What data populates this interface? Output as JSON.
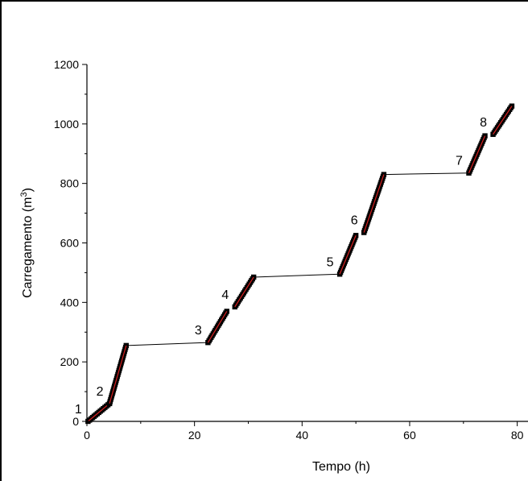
{
  "chart_data": {
    "type": "scatter",
    "title": "",
    "xlabel": "Tempo (h)",
    "ylabel_base": "Carregamento (m",
    "ylabel_sup": "3",
    "ylabel_close": ")",
    "xlim": [
      0,
      82
    ],
    "ylim": [
      0,
      1200
    ],
    "x_ticks": [
      0,
      20,
      40,
      60,
      80
    ],
    "x_tick_labels": [
      "0",
      "20",
      "40",
      "60",
      "80"
    ],
    "y_ticks": [
      0,
      200,
      400,
      600,
      800,
      1000,
      1200
    ],
    "y_tick_labels": [
      "0",
      "200",
      "400",
      "600",
      "800",
      "1000",
      "1200"
    ],
    "grid": false,
    "colors": {
      "points": "#000000",
      "fit": "#d62020",
      "connector": "#000000",
      "axis": "#000000"
    },
    "segments": [
      {
        "label": "1",
        "x": [
          0.2,
          4.2
        ],
        "y": [
          0,
          60
        ]
      },
      {
        "label": "2",
        "x": [
          4.2,
          7.3
        ],
        "y": [
          60,
          255
        ]
      },
      {
        "label": "3",
        "x": [
          22.5,
          26.0
        ],
        "y": [
          265,
          370
        ]
      },
      {
        "label": "4",
        "x": [
          27.5,
          31.0
        ],
        "y": [
          385,
          485
        ]
      },
      {
        "label": "5",
        "x": [
          47.0,
          50.0
        ],
        "y": [
          495,
          625
        ]
      },
      {
        "label": "6",
        "x": [
          51.5,
          55.2
        ],
        "y": [
          635,
          830
        ]
      },
      {
        "label": "7",
        "x": [
          71.0,
          74.0
        ],
        "y": [
          835,
          960
        ]
      },
      {
        "label": "8",
        "x": [
          75.5,
          79.0
        ],
        "y": [
          965,
          1060
        ]
      }
    ],
    "connectors": [
      {
        "x": [
          7.3,
          22.5
        ],
        "y": [
          255,
          265
        ]
      },
      {
        "x": [
          31.0,
          47.0
        ],
        "y": [
          485,
          495
        ]
      },
      {
        "x": [
          55.2,
          71.0
        ],
        "y": [
          830,
          835
        ]
      }
    ]
  }
}
